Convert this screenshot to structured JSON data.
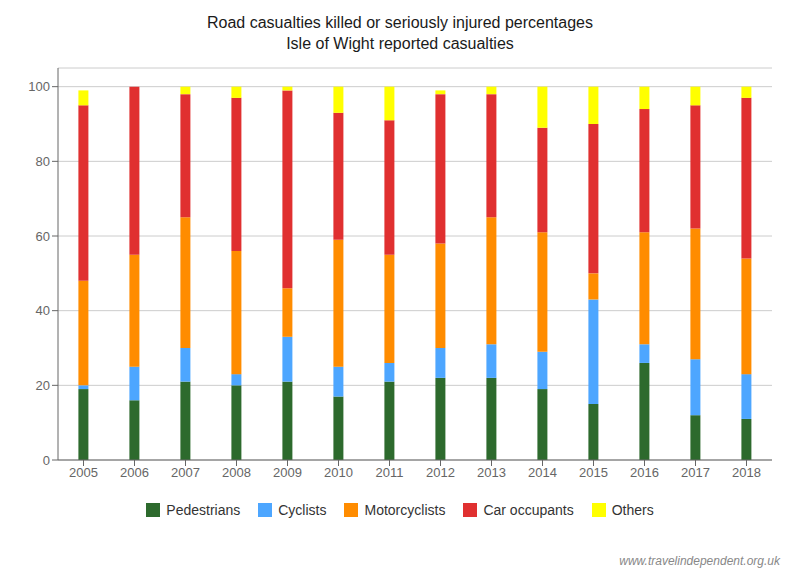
{
  "chart_data": {
    "type": "bar",
    "stacked": true,
    "title": "Road casualties killed or seriously injured percentages",
    "subtitle": "Isle of Wight reported casualties",
    "annotations": [
      "www.travelindependent.org.uk"
    ],
    "categories": [
      "2005",
      "2006",
      "2007",
      "2008",
      "2009",
      "2010",
      "2011",
      "2012",
      "2013",
      "2014",
      "2015",
      "2016",
      "2017",
      "2018"
    ],
    "series": [
      {
        "name": "Pedestrians",
        "color": "#2d6a2d",
        "values": [
          19,
          16,
          21,
          20,
          21,
          17,
          21,
          22,
          22,
          19,
          15,
          26,
          12,
          11
        ]
      },
      {
        "name": "Cyclists",
        "color": "#4da6ff",
        "values": [
          1,
          9,
          9,
          3,
          12,
          8,
          5,
          8,
          9,
          10,
          28,
          5,
          15,
          12
        ]
      },
      {
        "name": "Motorcyclists",
        "color": "#ff8c00",
        "values": [
          28,
          30,
          35,
          33,
          13,
          34,
          29,
          28,
          34,
          32,
          7,
          30,
          35,
          31
        ]
      },
      {
        "name": "Car occupants",
        "color": "#e03030",
        "values": [
          47,
          45,
          33,
          41,
          53,
          34,
          36,
          40,
          33,
          28,
          40,
          33,
          33,
          43
        ]
      },
      {
        "name": "Others",
        "color": "#ffff00",
        "values": [
          4,
          0,
          2,
          3,
          1,
          7,
          9,
          1,
          2,
          11,
          10,
          6,
          5,
          3
        ]
      }
    ],
    "ylim": [
      0,
      105
    ],
    "yticks": [
      0,
      20,
      40,
      60,
      80,
      100
    ],
    "grid": true,
    "legend": "bottom"
  }
}
